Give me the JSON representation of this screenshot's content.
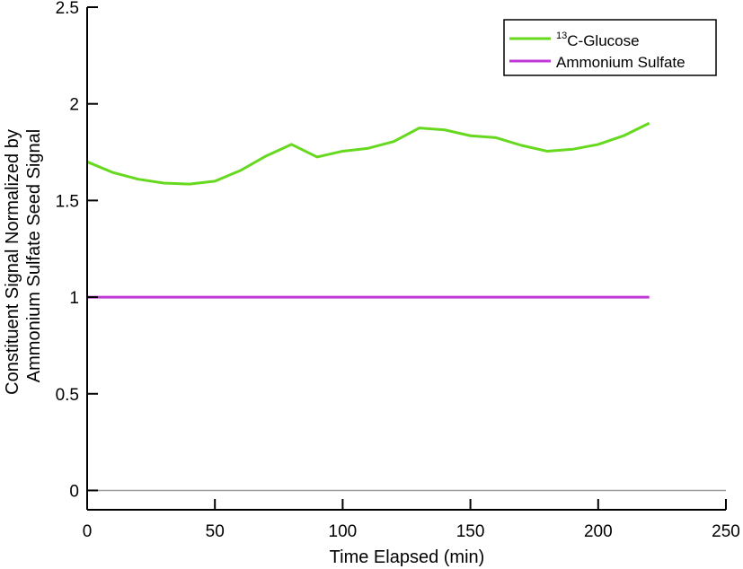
{
  "chart_data": {
    "type": "line",
    "title": "",
    "xlabel": "Time Elapsed (min)",
    "ylabel_lines": [
      "Constituent Signal Normalized by",
      "Ammonium Sulfate Seed Signal"
    ],
    "xlim": [
      0,
      250
    ],
    "ylim": [
      -0.1,
      2.5
    ],
    "x_ticks": [
      0,
      50,
      100,
      150,
      200,
      250
    ],
    "y_ticks": [
      0,
      0.5,
      1,
      1.5,
      2,
      2.5
    ],
    "x_tick_labels": [
      "0",
      "50",
      "100",
      "150",
      "200",
      "250"
    ],
    "y_tick_labels": [
      "0",
      "0.5",
      "1",
      "1.5",
      "2",
      "2.5"
    ],
    "grid": false,
    "zero_line": true,
    "legend_position": "top-right",
    "series": [
      {
        "name": "13C-Glucose",
        "legend_sup": "13",
        "legend_text": "C-Glucose",
        "color": "#66d91f",
        "x": [
          0,
          10,
          20,
          30,
          40,
          50,
          60,
          70,
          80,
          90,
          100,
          110,
          120,
          130,
          140,
          150,
          160,
          170,
          180,
          190,
          200,
          210,
          220
        ],
        "y": [
          1.7,
          1.645,
          1.61,
          1.59,
          1.585,
          1.6,
          1.655,
          1.73,
          1.79,
          1.725,
          1.755,
          1.77,
          1.805,
          1.875,
          1.865,
          1.835,
          1.825,
          1.785,
          1.755,
          1.765,
          1.79,
          1.835,
          1.9
        ]
      },
      {
        "name": "Ammonium Sulfate",
        "legend_sup": "",
        "legend_text": "Ammonium Sulfate",
        "color": "#c038d8",
        "x": [
          0,
          220
        ],
        "y": [
          1,
          1
        ]
      }
    ]
  }
}
